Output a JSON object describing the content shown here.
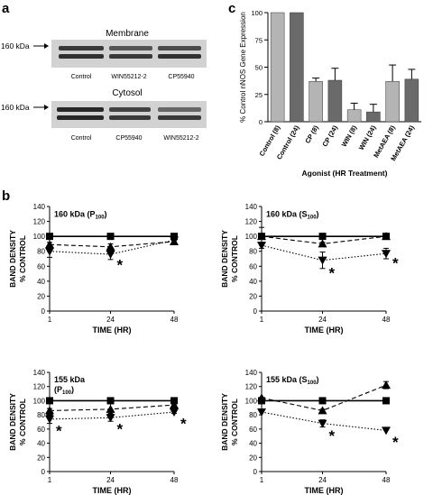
{
  "panel_letters": {
    "a": "a",
    "b": "b",
    "c": "c"
  },
  "blots": [
    {
      "title": "Membrane",
      "marker": "160 kDa",
      "lanes": [
        "Control",
        "WIN55212-2",
        "CP55940"
      ]
    },
    {
      "title": "Cytosol",
      "marker": "160 kDa",
      "lanes": [
        "Control",
        "CP55940",
        "WIN55212-2"
      ]
    }
  ],
  "colors": {
    "light_bar": "#b4b4b4",
    "dark_bar": "#6a6a6a",
    "blot_bg": "#d2d2d2",
    "band": "#1e1e1e"
  },
  "chart_data": [
    {
      "type": "bar",
      "ylabel": "% Control nNOS Gene Expression",
      "xlabel": "Agonist (HR Treatment)",
      "ylim": [
        0,
        100
      ],
      "yticks": [
        0,
        25,
        50,
        75,
        100
      ],
      "categories": [
        "Control (8)",
        "Control (24)",
        "CP (8)",
        "CP (24)",
        "WIN (8)",
        "WIN (24)",
        "MetAEA (8)",
        "MetAEA (24)"
      ],
      "values": [
        100,
        100,
        37,
        38,
        11,
        9,
        37,
        39
      ],
      "errors": [
        0,
        0,
        3,
        11,
        6,
        7,
        15,
        9
      ],
      "bar_shade": [
        "light",
        "dark",
        "light",
        "dark",
        "light",
        "dark",
        "light",
        "dark"
      ]
    },
    {
      "type": "line",
      "title": "160 kDa (P",
      "title_sub": "100",
      "title_end": ")",
      "xlabel": "TIME (HR)",
      "ylabel": "BAND DENSITY",
      "ylabel2": "% CONTROL",
      "x": [
        1,
        24,
        48
      ],
      "ylim": [
        0,
        140
      ],
      "yticks": [
        0,
        20,
        40,
        60,
        80,
        100,
        120,
        140
      ],
      "xticks": [
        1,
        24,
        48
      ],
      "series": [
        {
          "marker": "square",
          "line": "solid",
          "values": [
            100,
            100,
            100
          ],
          "errors": [
            0,
            0,
            0
          ]
        },
        {
          "marker": "triangle-up",
          "line": "dashed",
          "values": [
            89,
            86,
            93
          ],
          "errors": [
            3,
            4,
            2
          ]
        },
        {
          "marker": "triangle-down",
          "line": "dotted",
          "values": [
            80,
            76,
            95
          ],
          "errors": [
            8,
            7,
            3
          ]
        },
        {
          "marker": "diamond",
          "line": "none",
          "values": [
            84,
            81,
            96
          ],
          "errors": [
            0,
            0,
            0
          ]
        }
      ],
      "annotations": [
        {
          "text": "*",
          "x": 24,
          "y": 66
        }
      ]
    },
    {
      "type": "line",
      "title": "160 kDa (S",
      "title_sub": "100",
      "title_end": ")",
      "xlabel": "TIME (HR)",
      "ylabel": "BAND DENSITY",
      "ylabel2": "% CONTROL",
      "x": [
        1,
        24,
        48
      ],
      "ylim": [
        0,
        140
      ],
      "yticks": [
        0,
        20,
        40,
        60,
        80,
        100,
        120,
        140
      ],
      "xticks": [
        1,
        24,
        48
      ],
      "series": [
        {
          "marker": "square",
          "line": "solid",
          "values": [
            100,
            100,
            100
          ],
          "errors": [
            12,
            0,
            0
          ]
        },
        {
          "marker": "triangle-up",
          "line": "dashed",
          "values": [
            100,
            90,
            100
          ],
          "errors": [
            0,
            2,
            0
          ]
        },
        {
          "marker": "triangle-down",
          "line": "dotted",
          "values": [
            88,
            68,
            77
          ],
          "errors": [
            4,
            11,
            7
          ]
        }
      ],
      "annotations": [
        {
          "text": "*",
          "x": 24,
          "y": 55
        },
        {
          "text": "*",
          "x": 48,
          "y": 68
        }
      ]
    },
    {
      "type": "line",
      "title": "155 kDa",
      "title2": "(P",
      "title2_sub": "100",
      "title2_end": ")",
      "xlabel": "TIME (HR)",
      "ylabel": "BAND DENSITY",
      "ylabel2": "% CONTROL",
      "x": [
        1,
        24,
        48
      ],
      "ylim": [
        0,
        140
      ],
      "yticks": [
        0,
        20,
        40,
        60,
        80,
        100,
        120,
        140
      ],
      "xticks": [
        1,
        24,
        48
      ],
      "series": [
        {
          "marker": "square",
          "line": "solid",
          "values": [
            100,
            100,
            100
          ],
          "errors": [
            0,
            0,
            0
          ]
        },
        {
          "marker": "triangle-up",
          "line": "dashed",
          "values": [
            86,
            88,
            94
          ],
          "errors": [
            3,
            8,
            4
          ]
        },
        {
          "marker": "triangle-down",
          "line": "dotted",
          "values": [
            74,
            76,
            84
          ],
          "errors": [
            6,
            5,
            2
          ]
        },
        {
          "marker": "diamond",
          "line": "none",
          "values": [
            80,
            80,
            88
          ],
          "errors": [
            0,
            0,
            0
          ]
        }
      ],
      "annotations": [
        {
          "text": "*",
          "x": 1,
          "y": 62
        },
        {
          "text": "*",
          "x": 24,
          "y": 64
        },
        {
          "text": "*",
          "x": 48,
          "y": 72
        }
      ]
    },
    {
      "type": "line",
      "title": "155 kDa (S",
      "title_sub": "100",
      "title_end": ")",
      "xlabel": "TIME (HR)",
      "ylabel": "BAND DENSITY",
      "ylabel2": "% CONTROL",
      "x": [
        1,
        24,
        48
      ],
      "ylim": [
        0,
        140
      ],
      "yticks": [
        0,
        20,
        40,
        60,
        80,
        100,
        120,
        140
      ],
      "xticks": [
        1,
        24,
        48
      ],
      "series": [
        {
          "marker": "square",
          "line": "solid",
          "values": [
            100,
            100,
            100
          ],
          "errors": [
            0,
            0,
            0
          ]
        },
        {
          "marker": "triangle-up",
          "line": "dashed",
          "values": [
            104,
            86,
            122
          ],
          "errors": [
            0,
            2,
            5
          ]
        },
        {
          "marker": "triangle-down",
          "line": "dotted",
          "values": [
            84,
            68,
            58
          ],
          "errors": [
            0,
            5,
            0
          ]
        },
        {
          "marker": "diamond",
          "line": "none",
          "values": [
            102,
            0,
            0
          ],
          "errors": [
            0,
            0,
            0
          ]
        }
      ],
      "annotations": [
        {
          "text": "*",
          "x": 24,
          "y": 55
        },
        {
          "text": "*",
          "x": 48,
          "y": 46
        }
      ]
    }
  ]
}
